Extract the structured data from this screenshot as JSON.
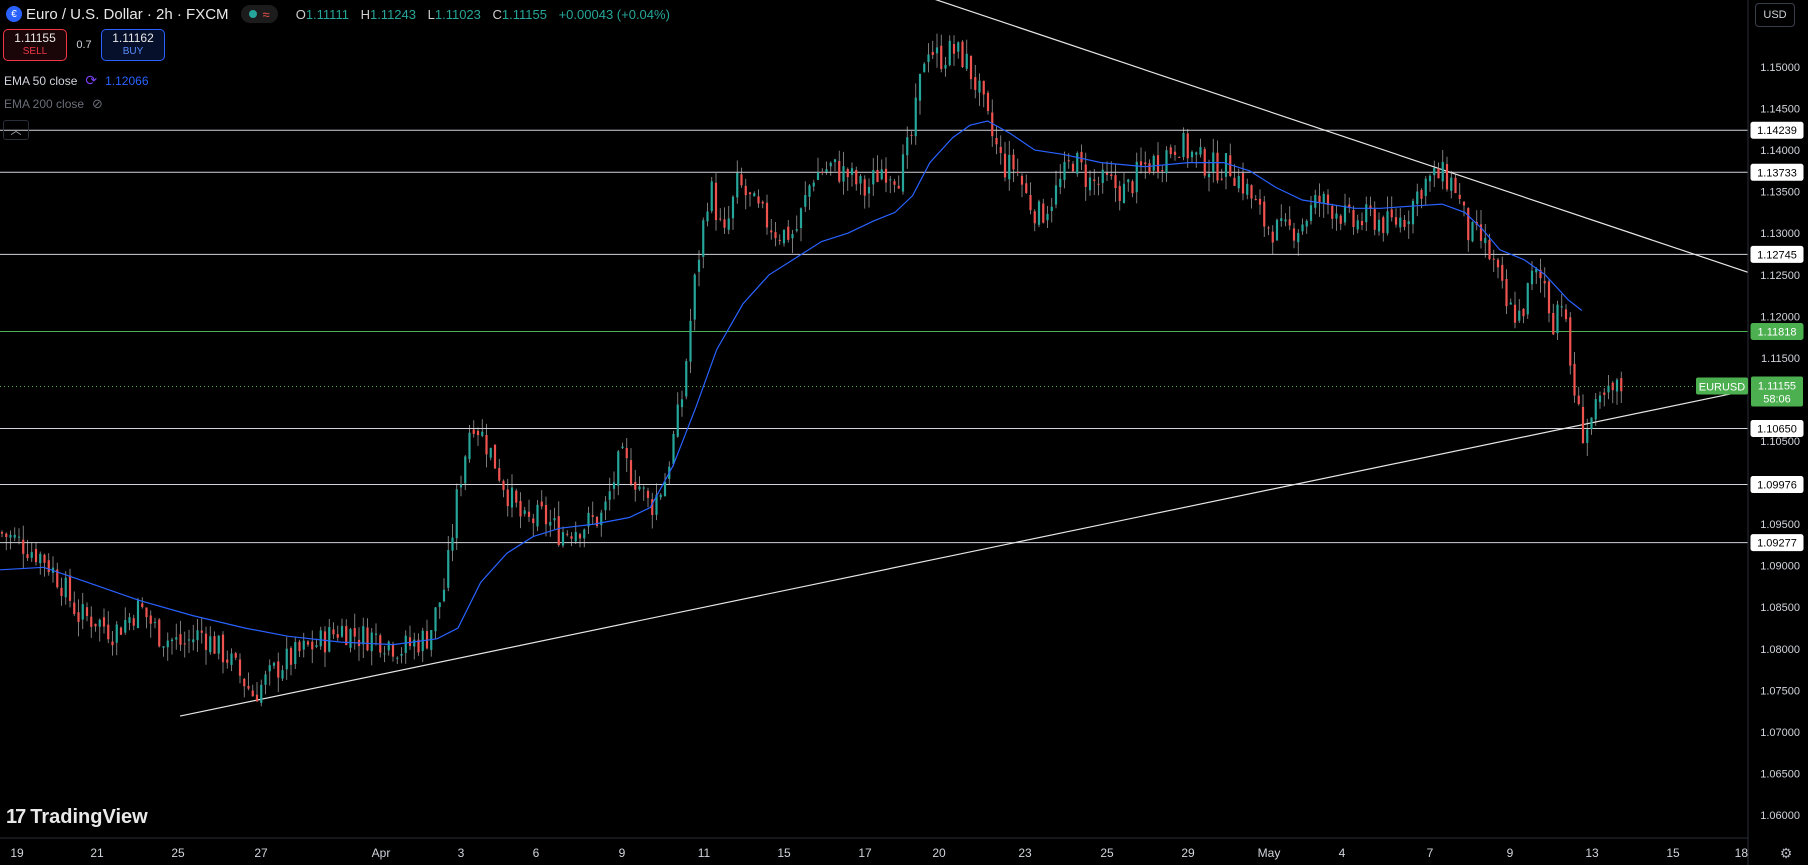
{
  "header": {
    "title": "Euro / U.S. Dollar · 2h · FXCM",
    "status_wave": "≈",
    "o_label": "O",
    "o": "1.11111",
    "h_label": "H",
    "h": "1.11243",
    "l_label": "L",
    "l": "1.11023",
    "c_label": "C",
    "c": "1.11155",
    "change": "+0.00043 (+0.04%)"
  },
  "trade": {
    "sell_price": "1.11155",
    "sell_label": "SELL",
    "spread": "0.7",
    "buy_price": "1.11162",
    "buy_label": "BUY"
  },
  "indicators": {
    "ema50_label": "EMA 50 close",
    "ema50_value": "1.12066",
    "ema200_label": "EMA 200 close"
  },
  "currency": "USD",
  "branding": "TradingView",
  "colors": {
    "up": "#26a69a",
    "down": "#ef5350",
    "ema": "#2962ff",
    "support_green": "#4caf50"
  },
  "chart_data": {
    "type": "candlestick",
    "symbol": "EURUSD",
    "timeframe": "2h",
    "ylim": [
      1.0555,
      1.1585
    ],
    "y_ticks": [
      "1.15000",
      "1.14500",
      "1.14000",
      "1.13500",
      "1.13000",
      "1.12500",
      "1.12000",
      "1.11500",
      "1.10500",
      "1.09500",
      "1.09000",
      "1.08500",
      "1.08000",
      "1.07500",
      "1.07000",
      "1.06500",
      "1.06000"
    ],
    "x_ticks": [
      "19",
      "21",
      "25",
      "27",
      "Apr",
      "3",
      "6",
      "9",
      "11",
      "15",
      "17",
      "20",
      "23",
      "25",
      "29",
      "May",
      "4",
      "7",
      "9",
      "13",
      "15",
      "18"
    ],
    "horizontal_levels": [
      {
        "value": 1.14239,
        "label": "1.14239",
        "color": "white"
      },
      {
        "value": 1.13733,
        "label": "1.13733",
        "color": "white"
      },
      {
        "value": 1.12745,
        "label": "1.12745",
        "color": "white"
      },
      {
        "value": 1.11818,
        "label": "1.11818",
        "color": "green"
      },
      {
        "value": 1.1065,
        "label": "1.10650",
        "color": "white"
      },
      {
        "value": 1.09976,
        "label": "1.09976",
        "color": "white"
      },
      {
        "value": 1.09277,
        "label": "1.09277",
        "color": "white"
      }
    ],
    "trendlines": [
      {
        "name": "rising support",
        "from": [
          0.103,
          1.0719
        ],
        "to": [
          1.0,
          1.1111
        ]
      },
      {
        "name": "falling resistance",
        "from": [
          0.5,
          1.1606
        ],
        "to": [
          1.0,
          1.1253
        ]
      }
    ],
    "current_price": {
      "label": "EURUSD",
      "value": 1.11155,
      "price_text": "1.11155",
      "countdown": "58:06"
    },
    "close_path": [
      [
        0.0,
        1.094
      ],
      [
        0.01,
        1.093
      ],
      [
        0.025,
        1.091
      ],
      [
        0.035,
        1.088
      ],
      [
        0.045,
        1.084
      ],
      [
        0.055,
        1.0835
      ],
      [
        0.065,
        1.082
      ],
      [
        0.08,
        1.085
      ],
      [
        0.092,
        1.0815
      ],
      [
        0.105,
        1.0805
      ],
      [
        0.115,
        1.082
      ],
      [
        0.13,
        1.079
      ],
      [
        0.145,
        1.0745
      ],
      [
        0.16,
        1.078
      ],
      [
        0.175,
        1.08
      ],
      [
        0.185,
        1.081
      ],
      [
        0.195,
        1.0825
      ],
      [
        0.205,
        1.0815
      ],
      [
        0.215,
        1.0815
      ],
      [
        0.23,
        1.08
      ],
      [
        0.245,
        1.0815
      ],
      [
        0.255,
        1.088
      ],
      [
        0.262,
        1.099
      ],
      [
        0.27,
        1.108
      ],
      [
        0.28,
        1.104
      ],
      [
        0.29,
        1.099
      ],
      [
        0.3,
        1.095
      ],
      [
        0.31,
        1.096
      ],
      [
        0.32,
        1.094
      ],
      [
        0.335,
        1.095
      ],
      [
        0.345,
        1.096
      ],
      [
        0.355,
        1.103
      ],
      [
        0.365,
        1.1
      ],
      [
        0.372,
        1.097
      ],
      [
        0.38,
        1.1
      ],
      [
        0.39,
        1.11
      ],
      [
        0.398,
        1.125
      ],
      [
        0.406,
        1.136
      ],
      [
        0.414,
        1.129
      ],
      [
        0.422,
        1.136
      ],
      [
        0.432,
        1.133
      ],
      [
        0.445,
        1.13
      ],
      [
        0.455,
        1.13
      ],
      [
        0.465,
        1.137
      ],
      [
        0.475,
        1.138
      ],
      [
        0.485,
        1.137
      ],
      [
        0.495,
        1.135
      ],
      [
        0.505,
        1.138
      ],
      [
        0.515,
        1.137
      ],
      [
        0.522,
        1.142
      ],
      [
        0.53,
        1.153
      ],
      [
        0.537,
        1.151
      ],
      [
        0.545,
        1.152
      ],
      [
        0.552,
        1.151
      ],
      [
        0.56,
        1.147
      ],
      [
        0.567,
        1.142
      ],
      [
        0.574,
        1.138
      ],
      [
        0.581,
        1.138
      ],
      [
        0.588,
        1.134
      ],
      [
        0.595,
        1.132
      ],
      [
        0.604,
        1.135
      ],
      [
        0.614,
        1.139
      ],
      [
        0.624,
        1.136
      ],
      [
        0.634,
        1.136
      ],
      [
        0.644,
        1.135
      ],
      [
        0.654,
        1.138
      ],
      [
        0.664,
        1.139
      ],
      [
        0.674,
        1.141
      ],
      [
        0.684,
        1.139
      ],
      [
        0.694,
        1.138
      ],
      [
        0.704,
        1.138
      ],
      [
        0.714,
        1.135
      ],
      [
        0.724,
        1.131
      ],
      [
        0.734,
        1.13
      ],
      [
        0.744,
        1.131
      ],
      [
        0.754,
        1.134
      ],
      [
        0.764,
        1.133
      ],
      [
        0.774,
        1.131
      ],
      [
        0.784,
        1.132
      ],
      [
        0.794,
        1.131
      ],
      [
        0.804,
        1.132
      ],
      [
        0.814,
        1.136
      ],
      [
        0.824,
        1.137
      ],
      [
        0.832,
        1.136
      ],
      [
        0.84,
        1.13
      ],
      [
        0.848,
        1.129
      ],
      [
        0.855,
        1.126
      ],
      [
        0.862,
        1.121
      ],
      [
        0.87,
        1.12
      ],
      [
        0.877,
        1.125
      ],
      [
        0.884,
        1.124
      ],
      [
        0.888,
        1.119
      ],
      [
        0.893,
        1.123
      ],
      [
        0.899,
        1.113
      ],
      [
        0.905,
        1.106
      ],
      [
        0.912,
        1.108
      ],
      [
        0.918,
        1.11
      ],
      [
        0.924,
        1.111
      ],
      [
        0.928,
        1.1115
      ]
    ],
    "ema_path": [
      [
        0.0,
        1.0895
      ],
      [
        0.025,
        1.0898
      ],
      [
        0.05,
        1.088
      ],
      [
        0.08,
        1.0858
      ],
      [
        0.11,
        1.084
      ],
      [
        0.14,
        1.0825
      ],
      [
        0.165,
        1.0815
      ],
      [
        0.195,
        1.0808
      ],
      [
        0.225,
        1.0805
      ],
      [
        0.25,
        1.0812
      ],
      [
        0.262,
        1.0825
      ],
      [
        0.275,
        1.088
      ],
      [
        0.29,
        1.0915
      ],
      [
        0.305,
        1.0935
      ],
      [
        0.32,
        1.0945
      ],
      [
        0.34,
        1.095
      ],
      [
        0.36,
        1.0958
      ],
      [
        0.372,
        1.097
      ],
      [
        0.385,
        1.102
      ],
      [
        0.398,
        1.109
      ],
      [
        0.41,
        1.116
      ],
      [
        0.425,
        1.1215
      ],
      [
        0.44,
        1.125
      ],
      [
        0.455,
        1.127
      ],
      [
        0.47,
        1.129
      ],
      [
        0.485,
        1.13
      ],
      [
        0.5,
        1.1315
      ],
      [
        0.512,
        1.1325
      ],
      [
        0.522,
        1.1345
      ],
      [
        0.532,
        1.1385
      ],
      [
        0.545,
        1.1415
      ],
      [
        0.555,
        1.143
      ],
      [
        0.565,
        1.1435
      ],
      [
        0.578,
        1.142
      ],
      [
        0.592,
        1.14
      ],
      [
        0.608,
        1.1395
      ],
      [
        0.63,
        1.1385
      ],
      [
        0.655,
        1.138
      ],
      [
        0.68,
        1.1385
      ],
      [
        0.7,
        1.1385
      ],
      [
        0.715,
        1.1375
      ],
      [
        0.73,
        1.1355
      ],
      [
        0.745,
        1.134
      ],
      [
        0.76,
        1.1335
      ],
      [
        0.775,
        1.133
      ],
      [
        0.79,
        1.133
      ],
      [
        0.81,
        1.1333
      ],
      [
        0.825,
        1.1335
      ],
      [
        0.838,
        1.1325
      ],
      [
        0.848,
        1.1305
      ],
      [
        0.858,
        1.128
      ],
      [
        0.872,
        1.1268
      ],
      [
        0.884,
        1.125
      ],
      [
        0.897,
        1.122
      ],
      [
        0.905,
        1.1207
      ]
    ]
  }
}
